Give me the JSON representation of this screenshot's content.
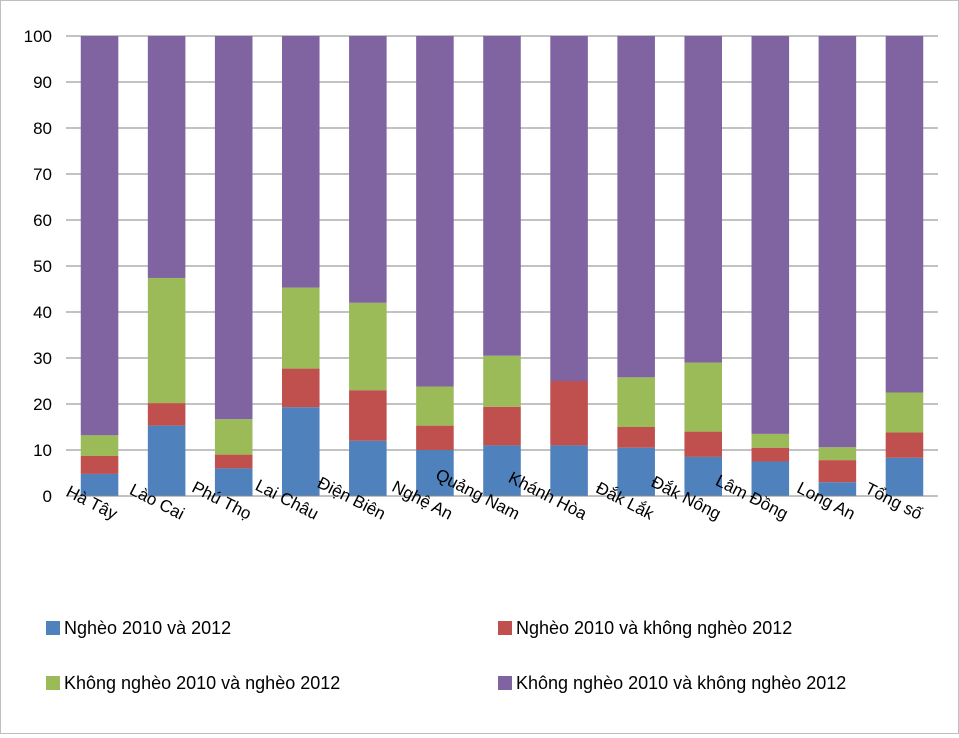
{
  "chart_data": {
    "type": "bar",
    "stacked": true,
    "categories": [
      "Hà Tây",
      "Lào Cai",
      "Phú Thọ",
      "Lai Châu",
      "Điện Biên",
      "Nghệ An",
      "Quảng Nam",
      "Khánh Hòa",
      "Đắk Lắk",
      "Đắk Nông",
      "Lâm Đồng",
      "Long An",
      "Tổng số"
    ],
    "series": [
      {
        "name": "Nghèo 2010 và 2012",
        "color": "#4F81BD",
        "values": [
          4.8,
          15.3,
          6.0,
          19.3,
          12.0,
          10.0,
          11.0,
          11.0,
          10.5,
          8.5,
          7.5,
          3.0,
          8.3
        ]
      },
      {
        "name": "Nghèo 2010 và không nghèo 2012",
        "color": "#C0504D",
        "values": [
          3.9,
          4.9,
          3.0,
          8.4,
          11.0,
          5.3,
          8.4,
          14.0,
          4.5,
          5.5,
          3.0,
          4.8,
          5.5
        ]
      },
      {
        "name": "Không nghèo 2010 và nghèo 2012",
        "color": "#9BBB59",
        "values": [
          4.5,
          27.2,
          7.7,
          17.6,
          19.0,
          8.5,
          11.1,
          0.0,
          10.8,
          15.0,
          3.0,
          2.8,
          8.7
        ]
      },
      {
        "name": "Không nghèo 2010 và không nghèo 2012",
        "color": "#8064A2",
        "values": [
          86.8,
          52.6,
          83.3,
          54.7,
          58.0,
          76.2,
          69.5,
          75.0,
          74.2,
          71.0,
          86.5,
          89.4,
          77.5
        ]
      }
    ],
    "yticks": [
      "0",
      "10",
      "20",
      "30",
      "40",
      "50",
      "60",
      "70",
      "80",
      "90",
      "100"
    ],
    "ylim": [
      0,
      100
    ],
    "grid": true,
    "legend_position": "bottom"
  }
}
